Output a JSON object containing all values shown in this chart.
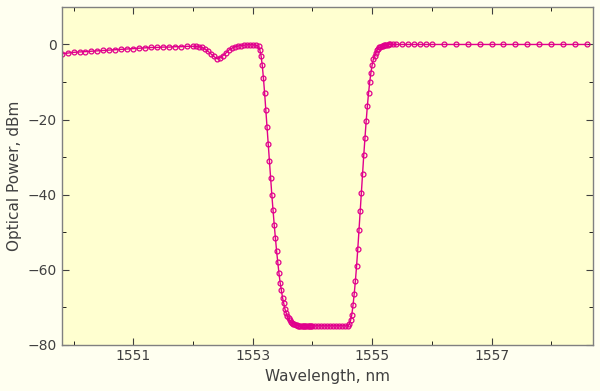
{
  "line_color": "#E0008C",
  "marker": "o",
  "markersize": 3.5,
  "linewidth": 1.0,
  "xlabel": "Wavelength, nm",
  "ylabel": "Optical Power, dBm",
  "xlim": [
    1549.8,
    1558.7
  ],
  "ylim": [
    -80,
    10
  ],
  "xticks": [
    1551,
    1553,
    1555,
    1557
  ],
  "yticks": [
    0,
    -20,
    -40,
    -60,
    -80
  ],
  "fig_bg": "#FFFFF0",
  "plot_bg": "#FFFFD0",
  "segments": {
    "x": [
      1549.8,
      1549.9,
      1550.0,
      1550.1,
      1550.2,
      1550.3,
      1550.4,
      1550.5,
      1550.6,
      1550.7,
      1550.8,
      1550.9,
      1551.0,
      1551.1,
      1551.2,
      1551.3,
      1551.4,
      1551.5,
      1551.6,
      1551.7,
      1551.8,
      1551.9,
      1552.0,
      1552.05,
      1552.1,
      1552.15,
      1552.2,
      1552.25,
      1552.3,
      1552.35,
      1552.4,
      1552.45,
      1552.5,
      1552.55,
      1552.6,
      1552.65,
      1552.7,
      1552.75,
      1552.8,
      1552.85,
      1552.9,
      1552.95,
      1553.0,
      1553.05,
      1553.1,
      1553.12,
      1553.14,
      1553.16,
      1553.18,
      1553.2,
      1553.22,
      1553.24,
      1553.26,
      1553.28,
      1553.3,
      1553.32,
      1553.34,
      1553.36,
      1553.38,
      1553.4,
      1553.42,
      1553.44,
      1553.46,
      1553.48,
      1553.5,
      1553.52,
      1553.54,
      1553.56,
      1553.58,
      1553.6,
      1553.62,
      1553.64,
      1553.66,
      1553.68,
      1553.7,
      1553.72,
      1553.74,
      1553.76,
      1553.78,
      1553.8,
      1553.82,
      1553.84,
      1553.86,
      1553.88,
      1553.9,
      1553.92,
      1553.94,
      1553.96,
      1553.98,
      1554.0,
      1554.05,
      1554.1,
      1554.15,
      1554.2,
      1554.25,
      1554.3,
      1554.35,
      1554.4,
      1554.45,
      1554.5,
      1554.55,
      1554.6,
      1554.62,
      1554.64,
      1554.66,
      1554.68,
      1554.7,
      1554.72,
      1554.74,
      1554.76,
      1554.78,
      1554.8,
      1554.82,
      1554.84,
      1554.86,
      1554.88,
      1554.9,
      1554.92,
      1554.94,
      1554.96,
      1554.98,
      1555.0,
      1555.02,
      1555.04,
      1555.06,
      1555.08,
      1555.1,
      1555.12,
      1555.14,
      1555.16,
      1555.18,
      1555.2,
      1555.22,
      1555.24,
      1555.26,
      1555.28,
      1555.3,
      1555.35,
      1555.4,
      1555.5,
      1555.6,
      1555.7,
      1555.8,
      1555.9,
      1556.0,
      1556.2,
      1556.4,
      1556.6,
      1556.8,
      1557.0,
      1557.2,
      1557.4,
      1557.6,
      1557.8,
      1558.0,
      1558.2,
      1558.4,
      1558.6
    ],
    "y": [
      -2.5,
      -2.3,
      -2.1,
      -2.0,
      -1.9,
      -1.8,
      -1.7,
      -1.6,
      -1.5,
      -1.4,
      -1.3,
      -1.2,
      -1.1,
      -1.0,
      -0.9,
      -0.8,
      -0.8,
      -0.7,
      -0.7,
      -0.6,
      -0.6,
      -0.5,
      -0.5,
      -0.5,
      -0.6,
      -0.8,
      -1.2,
      -1.8,
      -2.5,
      -3.2,
      -3.8,
      -3.5,
      -3.0,
      -2.3,
      -1.5,
      -1.0,
      -0.6,
      -0.4,
      -0.3,
      -0.2,
      -0.1,
      -0.1,
      -0.1,
      -0.2,
      -0.5,
      -1.5,
      -3.0,
      -5.5,
      -9.0,
      -13.0,
      -17.5,
      -22.0,
      -26.5,
      -31.0,
      -35.5,
      -40.0,
      -44.0,
      -48.0,
      -51.5,
      -55.0,
      -58.0,
      -61.0,
      -63.5,
      -65.5,
      -67.5,
      -69.0,
      -70.5,
      -71.5,
      -72.5,
      -73.0,
      -73.5,
      -74.0,
      -74.2,
      -74.5,
      -74.5,
      -74.7,
      -74.8,
      -74.9,
      -74.9,
      -75.0,
      -75.0,
      -75.0,
      -75.0,
      -75.0,
      -75.0,
      -75.0,
      -75.0,
      -75.0,
      -75.0,
      -75.0,
      -75.0,
      -75.0,
      -75.0,
      -75.0,
      -75.0,
      -75.0,
      -75.0,
      -75.0,
      -75.0,
      -75.0,
      -75.0,
      -75.0,
      -74.5,
      -73.5,
      -72.0,
      -69.5,
      -66.5,
      -63.0,
      -59.0,
      -54.5,
      -49.5,
      -44.5,
      -39.5,
      -34.5,
      -29.5,
      -25.0,
      -20.5,
      -16.5,
      -13.0,
      -10.0,
      -7.5,
      -5.5,
      -4.0,
      -3.0,
      -2.2,
      -1.6,
      -1.2,
      -0.8,
      -0.6,
      -0.4,
      -0.3,
      -0.2,
      -0.1,
      -0.1,
      -0.1,
      -0.0,
      -0.0,
      -0.0,
      -0.0,
      0.0,
      0.0,
      0.0,
      0.0,
      0.0,
      0.0,
      0.0,
      0.0,
      0.0,
      0.0,
      0.0,
      0.0,
      0.0,
      0.0,
      0.0,
      0.0,
      0.0,
      0.0,
      0.0
    ]
  }
}
